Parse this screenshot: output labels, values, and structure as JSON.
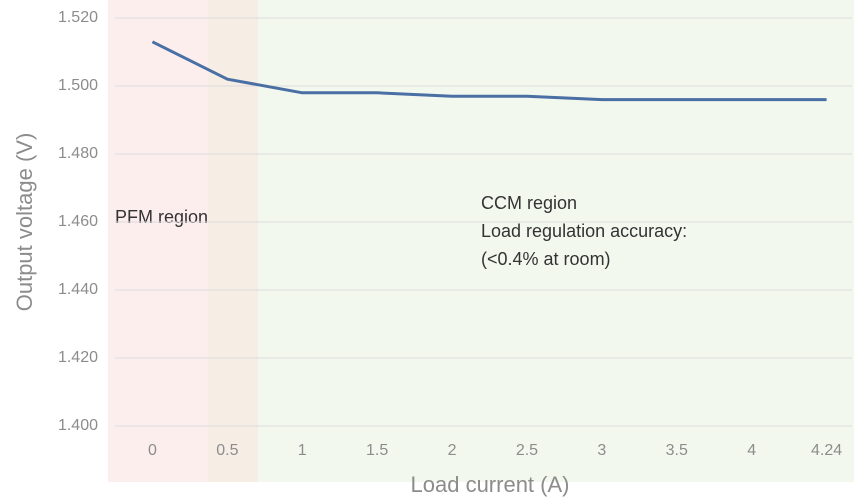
{
  "chart_data": {
    "type": "line",
    "x_label": "Load current (A)",
    "y_label": "Output voltage (V)",
    "categories": [
      "0",
      "0.5",
      "1",
      "1.5",
      "2",
      "2.5",
      "3",
      "3.5",
      "4",
      "4.24"
    ],
    "series": [
      {
        "name": "Output voltage",
        "color": "#4a6fa5",
        "values": [
          1.513,
          1.502,
          1.498,
          1.498,
          1.497,
          1.497,
          1.496,
          1.496,
          1.496,
          1.496
        ]
      }
    ],
    "ylim": [
      1.4,
      1.52
    ],
    "yticks": [
      {
        "value": 1.4,
        "label": "1.400"
      },
      {
        "value": 1.42,
        "label": "1.420"
      },
      {
        "value": 1.44,
        "label": "1.440"
      },
      {
        "value": 1.46,
        "label": "1.460"
      },
      {
        "value": 1.48,
        "label": "1.480"
      },
      {
        "value": 1.5,
        "label": "1.500"
      },
      {
        "value": 1.52,
        "label": "1.520"
      }
    ],
    "grid": true,
    "annotations": [
      "PFM region",
      "CCM region",
      "Load regulation accuracy:",
      "(<0.4% at room)"
    ]
  }
}
